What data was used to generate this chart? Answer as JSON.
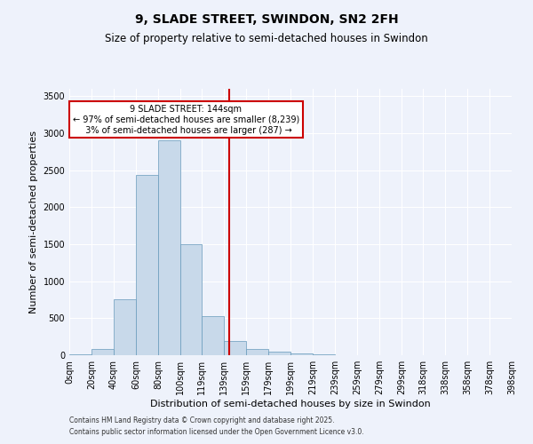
{
  "title": "9, SLADE STREET, SWINDON, SN2 2FH",
  "subtitle": "Size of property relative to semi-detached houses in Swindon",
  "xlabel": "Distribution of semi-detached houses by size in Swindon",
  "ylabel": "Number of semi-detached properties",
  "property_size": 144,
  "property_label": "9 SLADE STREET: 144sqm",
  "pct_smaller": 97,
  "count_smaller": 8239,
  "pct_larger": 3,
  "count_larger": 287,
  "footnote1": "Contains HM Land Registry data © Crown copyright and database right 2025.",
  "footnote2": "Contains public sector information licensed under the Open Government Licence v3.0.",
  "bar_color": "#c8d9ea",
  "bar_edge_color": "#6699bb",
  "vline_color": "#cc0000",
  "annotation_box_edge": "#cc0000",
  "background_color": "#eef2fb",
  "plot_bg_color": "#eef2fb",
  "bins": [
    0,
    20,
    40,
    60,
    80,
    100,
    119,
    139,
    159,
    179,
    199,
    219,
    239,
    259,
    279,
    299,
    318,
    338,
    358,
    378,
    398
  ],
  "counts": [
    15,
    85,
    760,
    2440,
    2900,
    1500,
    530,
    190,
    80,
    50,
    20,
    8,
    4,
    2,
    1,
    1,
    0,
    0,
    0,
    0
  ],
  "ylim": [
    0,
    3600
  ],
  "yticks": [
    0,
    500,
    1000,
    1500,
    2000,
    2500,
    3000,
    3500
  ],
  "title_fontsize": 10,
  "subtitle_fontsize": 8.5,
  "axis_label_fontsize": 8,
  "tick_fontsize": 7
}
